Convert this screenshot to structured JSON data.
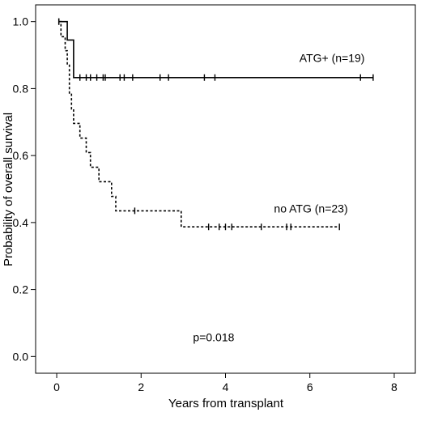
{
  "chart_data": {
    "type": "line",
    "subtype": "kaplan-meier",
    "title": "",
    "xlabel": "Years from transplant",
    "ylabel": "Probability of overall survival",
    "xlim": [
      -0.5,
      8.5
    ],
    "ylim": [
      -0.05,
      1.05
    ],
    "xticks": [
      0,
      2,
      4,
      6,
      8
    ],
    "yticks": [
      0.0,
      0.2,
      0.4,
      0.6,
      0.8,
      1.0
    ],
    "ytick_labels": [
      "0.0",
      "0.2",
      "0.4",
      "0.6",
      "0.8",
      "1.0"
    ],
    "grid": false,
    "legend": "none",
    "series": [
      {
        "name": "ATG+ (n=19)",
        "line_style": "solid",
        "color": "#000000",
        "steps": [
          [
            0.05,
            1.0
          ],
          [
            0.25,
            0.945
          ],
          [
            0.4,
            0.833
          ],
          [
            7.5,
            0.833
          ]
        ],
        "censored": [
          [
            0.05,
            1.0
          ],
          [
            0.55,
            0.833
          ],
          [
            0.7,
            0.833
          ],
          [
            0.8,
            0.833
          ],
          [
            0.95,
            0.833
          ],
          [
            1.1,
            0.833
          ],
          [
            1.15,
            0.833
          ],
          [
            1.5,
            0.833
          ],
          [
            1.6,
            0.833
          ],
          [
            1.8,
            0.833
          ],
          [
            2.45,
            0.833
          ],
          [
            2.65,
            0.833
          ],
          [
            3.5,
            0.833
          ],
          [
            3.75,
            0.833
          ],
          [
            7.2,
            0.833
          ],
          [
            7.5,
            0.833
          ]
        ]
      },
      {
        "name": "no ATG (n=23)",
        "line_style": "dashed",
        "color": "#000000",
        "steps": [
          [
            0.05,
            1.0
          ],
          [
            0.1,
            0.955
          ],
          [
            0.2,
            0.913
          ],
          [
            0.25,
            0.87
          ],
          [
            0.3,
            0.783
          ],
          [
            0.35,
            0.739
          ],
          [
            0.4,
            0.696
          ],
          [
            0.55,
            0.652
          ],
          [
            0.7,
            0.609
          ],
          [
            0.8,
            0.565
          ],
          [
            1.0,
            0.522
          ],
          [
            1.3,
            0.478
          ],
          [
            1.4,
            0.435
          ],
          [
            2.95,
            0.387
          ],
          [
            6.7,
            0.387
          ]
        ],
        "censored": [
          [
            0.05,
            1.0
          ],
          [
            1.85,
            0.435
          ],
          [
            3.6,
            0.387
          ],
          [
            3.85,
            0.387
          ],
          [
            4.0,
            0.387
          ],
          [
            4.15,
            0.387
          ],
          [
            4.85,
            0.387
          ],
          [
            5.45,
            0.387
          ],
          [
            5.55,
            0.387
          ],
          [
            6.7,
            0.387
          ]
        ]
      }
    ],
    "annotations": [
      {
        "text": "ATG+ (n=19)",
        "x": 7.3,
        "y": 0.88,
        "anchor": "end"
      },
      {
        "text": "no ATG (n=23)",
        "x": 6.9,
        "y": 0.43,
        "anchor": "end"
      },
      {
        "text": "p=0.018",
        "x": 3.72,
        "y": 0.045,
        "anchor": "middle"
      }
    ]
  }
}
